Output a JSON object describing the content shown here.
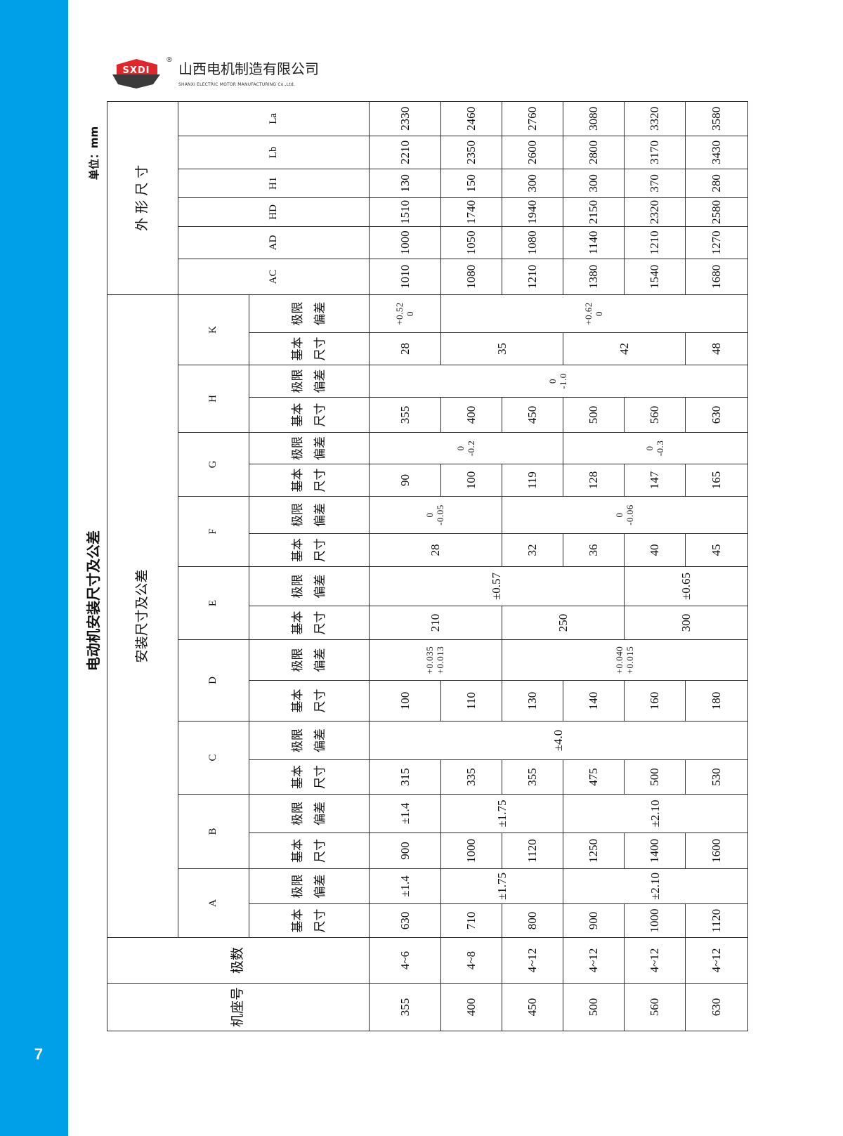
{
  "header": {
    "logo_text": "SXDI",
    "registered": "®",
    "company_cn": "山西电机制造有限公司",
    "company_en": "SHANXI ELECTRIC MOTOR MANUFACTURING Co.,Ltd."
  },
  "title": "电动机安装尺寸及公差",
  "unit": "单位：mm",
  "page_number": "7",
  "colors": {
    "band": "#00a0e9",
    "logo_red": "#e0262b",
    "logo_dark": "#3a3a3a"
  },
  "table": {
    "frame_label": "机座号",
    "poles_label": "极数",
    "mounting_label": "安装尺寸及公差",
    "outline_label": "外 形 尺 寸",
    "basic_label": "基本\n尺寸",
    "tol_label": "极限\n偏差",
    "mount_groups": [
      "A",
      "B",
      "C",
      "D",
      "E",
      "F",
      "G",
      "H",
      "K"
    ],
    "outline_cols": [
      "AC",
      "AD",
      "HD",
      "H1",
      "Lb",
      "La"
    ],
    "columns": [
      {
        "key": "frame",
        "cells": [
          {
            "text": "355",
            "rows": 1
          },
          {
            "text": "400",
            "rows": 1
          },
          {
            "text": "450",
            "rows": 1
          },
          {
            "text": "500",
            "rows": 1
          },
          {
            "text": "560",
            "rows": 1
          },
          {
            "text": "630",
            "rows": 1
          }
        ]
      },
      {
        "key": "poles",
        "cells": [
          {
            "text": "4~6",
            "rows": 1
          },
          {
            "text": "4~8",
            "rows": 1
          },
          {
            "text": "4~12",
            "rows": 1
          },
          {
            "text": "4~12",
            "rows": 1
          },
          {
            "text": "4~12",
            "rows": 1
          },
          {
            "text": "4~12",
            "rows": 1
          }
        ]
      },
      {
        "key": "A_basic",
        "cells": [
          {
            "text": "630",
            "rows": 1
          },
          {
            "text": "710",
            "rows": 1
          },
          {
            "text": "800",
            "rows": 1
          },
          {
            "text": "900",
            "rows": 1
          },
          {
            "text": "1000",
            "rows": 1
          },
          {
            "text": "1120",
            "rows": 1
          }
        ]
      },
      {
        "key": "A_tol",
        "cells": [
          {
            "text": "±1.4",
            "rows": 1
          },
          {
            "text": "±1.75",
            "rows": 2
          },
          {
            "text": "±2.10",
            "rows": 3
          }
        ]
      },
      {
        "key": "B_basic",
        "cells": [
          {
            "text": "900",
            "rows": 1
          },
          {
            "text": "1000",
            "rows": 1
          },
          {
            "text": "1120",
            "rows": 1
          },
          {
            "text": "1250",
            "rows": 1
          },
          {
            "text": "1400",
            "rows": 1
          },
          {
            "text": "1600",
            "rows": 1
          }
        ]
      },
      {
        "key": "B_tol",
        "cells": [
          {
            "text": "±1.4",
            "rows": 1
          },
          {
            "text": "±1.75",
            "rows": 2
          },
          {
            "text": "±2.10",
            "rows": 3
          }
        ]
      },
      {
        "key": "C_basic",
        "cells": [
          {
            "text": "315",
            "rows": 1
          },
          {
            "text": "335",
            "rows": 1
          },
          {
            "text": "355",
            "rows": 1
          },
          {
            "text": "475",
            "rows": 1
          },
          {
            "text": "500",
            "rows": 1
          },
          {
            "text": "530",
            "rows": 1
          }
        ]
      },
      {
        "key": "C_tol",
        "cells": [
          {
            "text": "±4.0",
            "rows": 6
          }
        ]
      },
      {
        "key": "D_basic",
        "cells": [
          {
            "text": "100",
            "rows": 1
          },
          {
            "text": "110",
            "rows": 1
          },
          {
            "text": "130",
            "rows": 1
          },
          {
            "text": "140",
            "rows": 1
          },
          {
            "text": "160",
            "rows": 1
          },
          {
            "text": "180",
            "rows": 1
          }
        ]
      },
      {
        "key": "D_tol",
        "cells": [
          {
            "text": "+0.035\n+0.013",
            "rows": 2
          },
          {
            "text": "+0.040\n+0.015",
            "rows": 4
          }
        ]
      },
      {
        "key": "E_basic",
        "cells": [
          {
            "text": "210",
            "rows": 2
          },
          {
            "text": "250",
            "rows": 2
          },
          {
            "text": "300",
            "rows": 2
          }
        ]
      },
      {
        "key": "E_tol",
        "cells": [
          {
            "text": "±0.57",
            "rows": 4
          },
          {
            "text": "±0.65",
            "rows": 2
          }
        ]
      },
      {
        "key": "F_basic",
        "cells": [
          {
            "text": "28",
            "rows": 2
          },
          {
            "text": "32",
            "rows": 1
          },
          {
            "text": "36",
            "rows": 1
          },
          {
            "text": "40",
            "rows": 1
          },
          {
            "text": "45",
            "rows": 1
          }
        ]
      },
      {
        "key": "F_tol",
        "cells": [
          {
            "text": "0\n-0.05",
            "rows": 2
          },
          {
            "text": "0\n-0.06",
            "rows": 4
          }
        ]
      },
      {
        "key": "G_basic",
        "cells": [
          {
            "text": "90",
            "rows": 1
          },
          {
            "text": "100",
            "rows": 1
          },
          {
            "text": "119",
            "rows": 1
          },
          {
            "text": "128",
            "rows": 1
          },
          {
            "text": "147",
            "rows": 1
          },
          {
            "text": "165",
            "rows": 1
          }
        ]
      },
      {
        "key": "G_tol",
        "cells": [
          {
            "text": "0\n-0.2",
            "rows": 3
          },
          {
            "text": "0\n-0.3",
            "rows": 3
          }
        ]
      },
      {
        "key": "H_basic",
        "cells": [
          {
            "text": "355",
            "rows": 1
          },
          {
            "text": "400",
            "rows": 1
          },
          {
            "text": "450",
            "rows": 1
          },
          {
            "text": "500",
            "rows": 1
          },
          {
            "text": "560",
            "rows": 1
          },
          {
            "text": "630",
            "rows": 1
          }
        ]
      },
      {
        "key": "H_tol",
        "cells": [
          {
            "text": "0\n-1.0",
            "rows": 6
          }
        ]
      },
      {
        "key": "K_basic",
        "cells": [
          {
            "text": "28",
            "rows": 1
          },
          {
            "text": "35",
            "rows": 2
          },
          {
            "text": "42",
            "rows": 2
          },
          {
            "text": "48",
            "rows": 1
          }
        ]
      },
      {
        "key": "K_tol",
        "cells": [
          {
            "text": "+0.52\n0",
            "rows": 1
          },
          {
            "text": "+0.62\n0",
            "rows": 5
          }
        ]
      },
      {
        "key": "AC",
        "cells": [
          {
            "text": "1010",
            "rows": 1
          },
          {
            "text": "1080",
            "rows": 1
          },
          {
            "text": "1210",
            "rows": 1
          },
          {
            "text": "1380",
            "rows": 1
          },
          {
            "text": "1540",
            "rows": 1
          },
          {
            "text": "1680",
            "rows": 1
          }
        ]
      },
      {
        "key": "AD",
        "cells": [
          {
            "text": "1000",
            "rows": 1
          },
          {
            "text": "1050",
            "rows": 1
          },
          {
            "text": "1080",
            "rows": 1
          },
          {
            "text": "1140",
            "rows": 1
          },
          {
            "text": "1210",
            "rows": 1
          },
          {
            "text": "1270",
            "rows": 1
          }
        ]
      },
      {
        "key": "HD",
        "cells": [
          {
            "text": "1510",
            "rows": 1
          },
          {
            "text": "1740",
            "rows": 1
          },
          {
            "text": "1940",
            "rows": 1
          },
          {
            "text": "2150",
            "rows": 1
          },
          {
            "text": "2320",
            "rows": 1
          },
          {
            "text": "2580",
            "rows": 1
          }
        ]
      },
      {
        "key": "H1",
        "cells": [
          {
            "text": "130",
            "rows": 1
          },
          {
            "text": "150",
            "rows": 1
          },
          {
            "text": "300",
            "rows": 1
          },
          {
            "text": "300",
            "rows": 1
          },
          {
            "text": "370",
            "rows": 1
          },
          {
            "text": "280",
            "rows": 1
          }
        ]
      },
      {
        "key": "Lb",
        "cells": [
          {
            "text": "2210",
            "rows": 1
          },
          {
            "text": "2350",
            "rows": 1
          },
          {
            "text": "2600",
            "rows": 1
          },
          {
            "text": "2800",
            "rows": 1
          },
          {
            "text": "3170",
            "rows": 1
          },
          {
            "text": "3430",
            "rows": 1
          }
        ]
      },
      {
        "key": "La",
        "cells": [
          {
            "text": "2330",
            "rows": 1
          },
          {
            "text": "2460",
            "rows": 1
          },
          {
            "text": "2760",
            "rows": 1
          },
          {
            "text": "3080",
            "rows": 1
          },
          {
            "text": "3320",
            "rows": 1
          },
          {
            "text": "3580",
            "rows": 1
          }
        ]
      }
    ]
  }
}
